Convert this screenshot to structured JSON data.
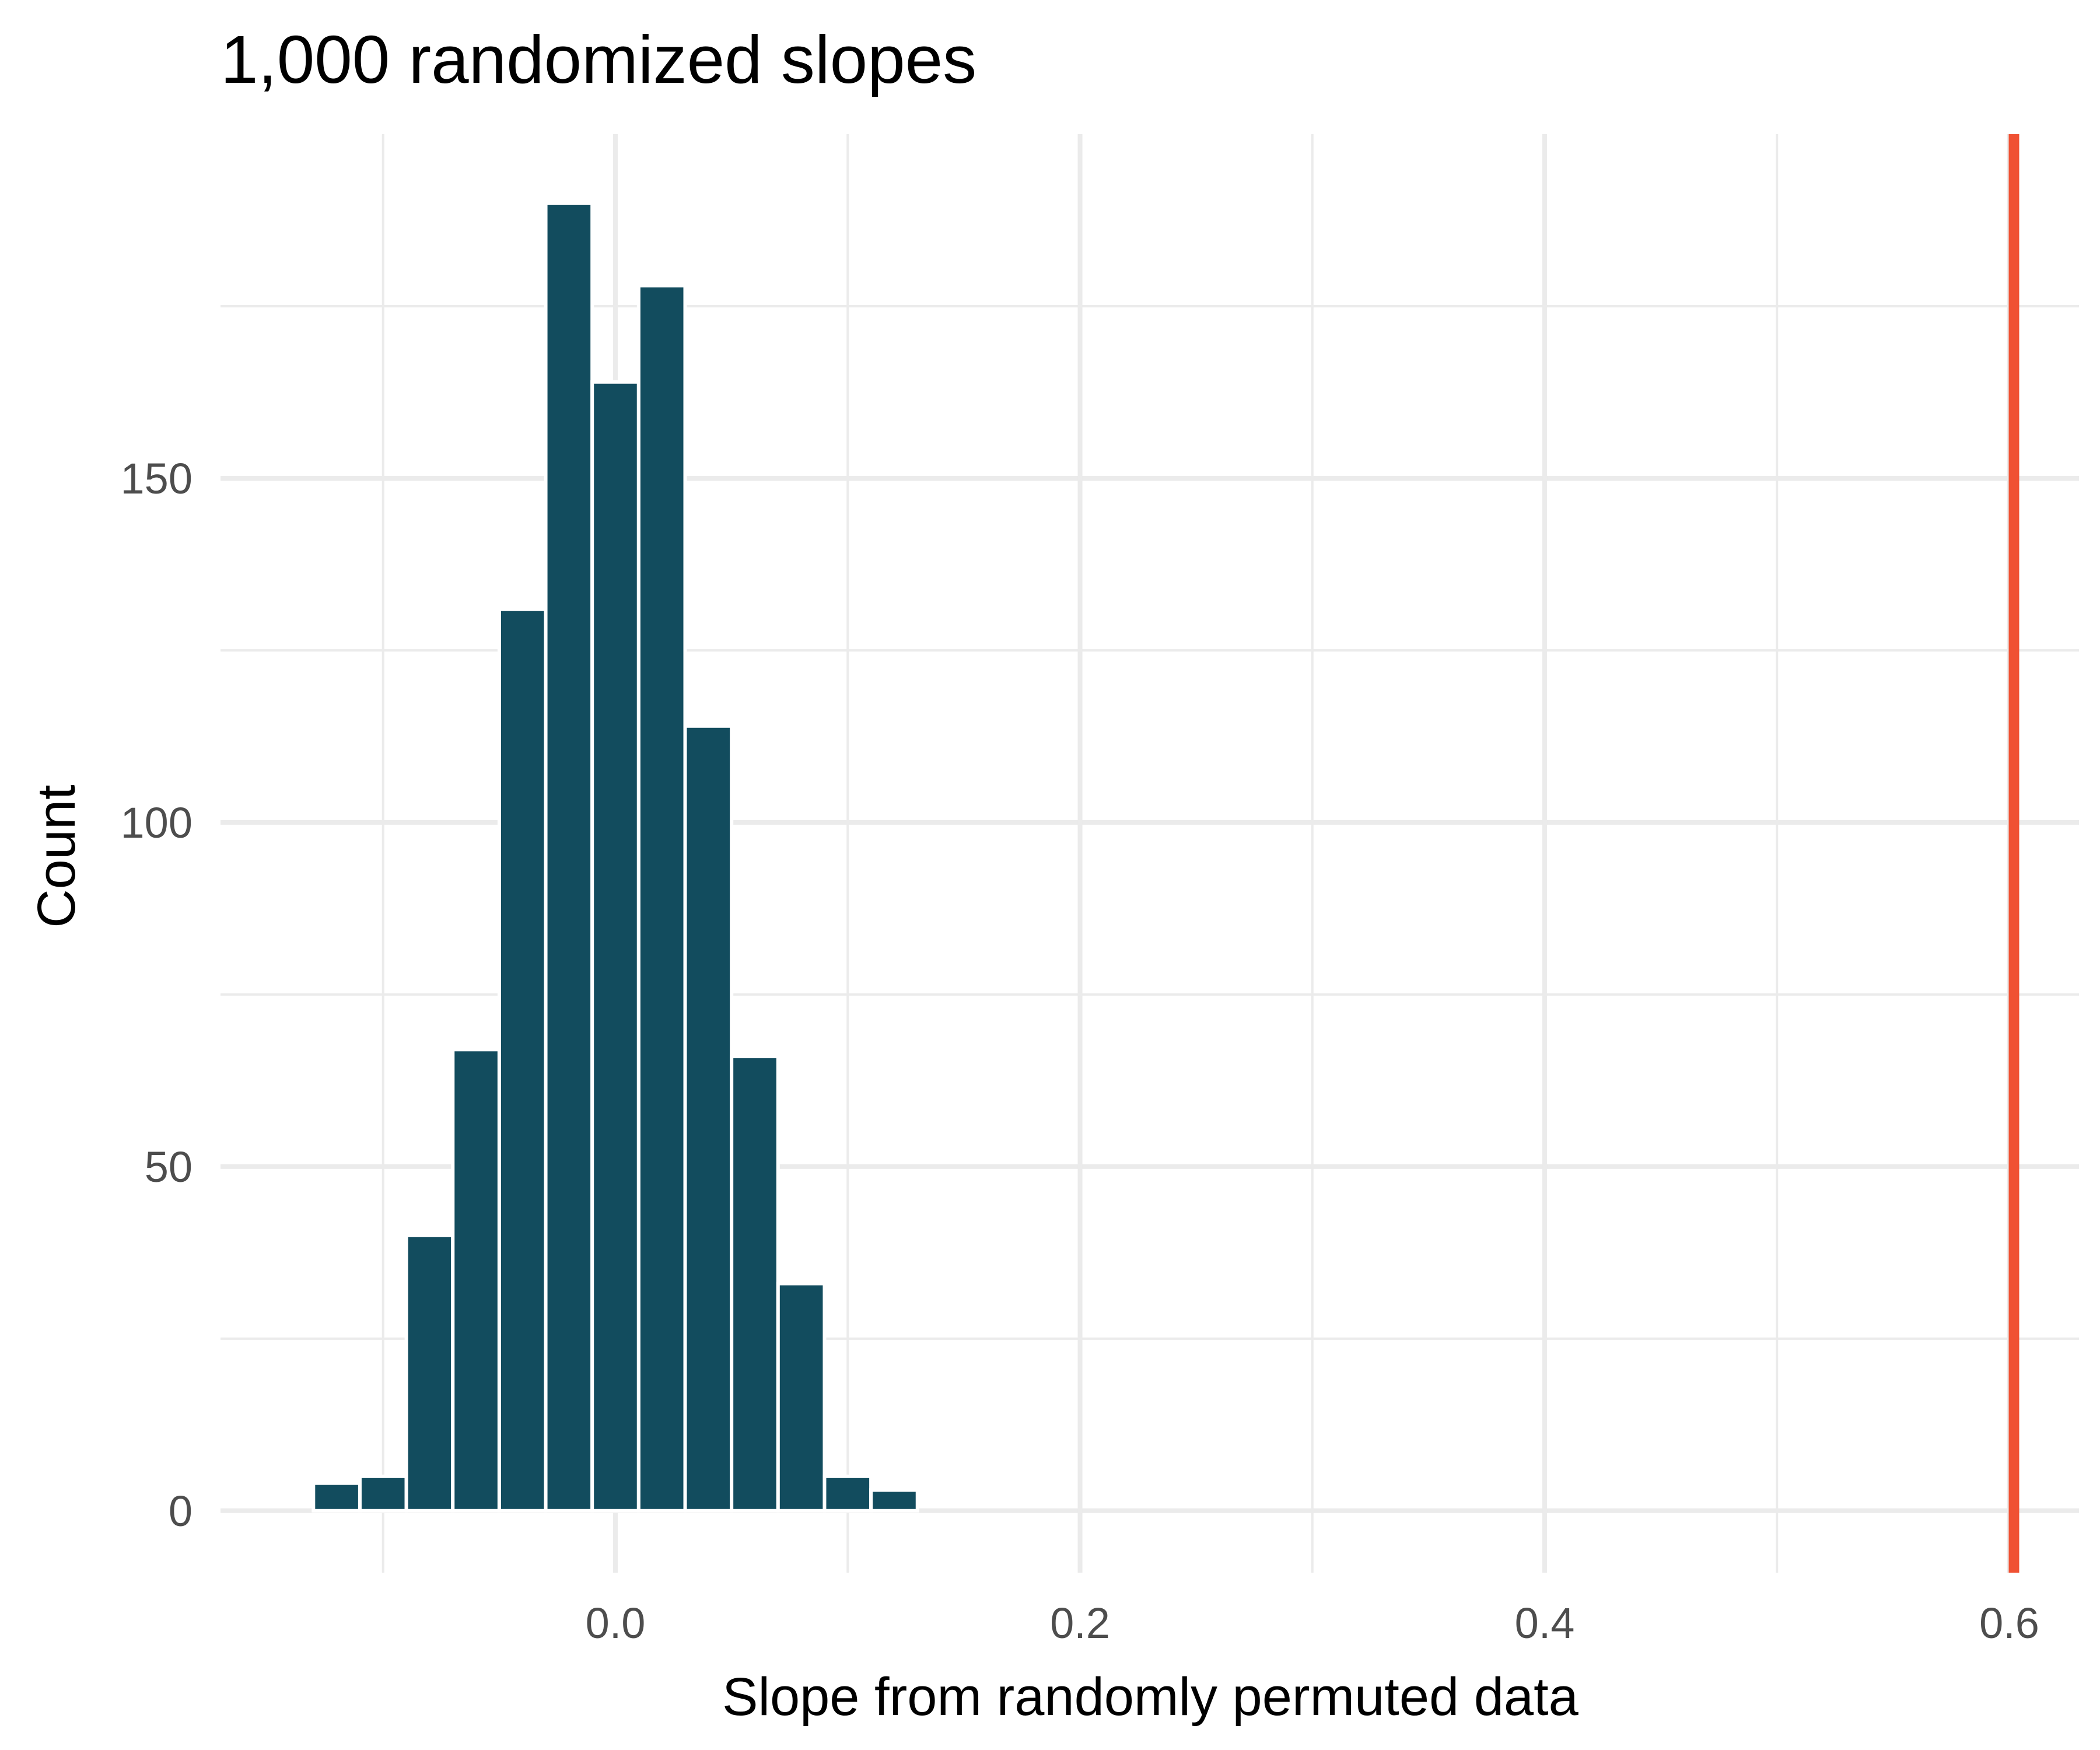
{
  "chart_data": {
    "type": "bar",
    "title": "1,000 randomized slopes",
    "xlabel": "Slope from randomly permuted data",
    "ylabel": "Count",
    "bin_width": 0.02,
    "bins": [
      {
        "x": -0.12,
        "count": 4
      },
      {
        "x": -0.1,
        "count": 5
      },
      {
        "x": -0.08,
        "count": 40
      },
      {
        "x": -0.06,
        "count": 67
      },
      {
        "x": -0.04,
        "count": 131
      },
      {
        "x": -0.02,
        "count": 190
      },
      {
        "x": 0.0,
        "count": 164
      },
      {
        "x": 0.02,
        "count": 178
      },
      {
        "x": 0.04,
        "count": 114
      },
      {
        "x": 0.06,
        "count": 66
      },
      {
        "x": 0.08,
        "count": 33
      },
      {
        "x": 0.1,
        "count": 5
      },
      {
        "x": 0.12,
        "count": 3
      }
    ],
    "observed_line": {
      "x": 0.602,
      "color": "#f05133"
    },
    "bar_color": "#124c5e",
    "xlim": [
      -0.17,
      0.63
    ],
    "ylim": [
      -9,
      200
    ],
    "x_ticks": [
      {
        "value": 0.0,
        "label": "0.0"
      },
      {
        "value": 0.2,
        "label": "0.2"
      },
      {
        "value": 0.4,
        "label": "0.4"
      },
      {
        "value": 0.6,
        "label": "0.6"
      }
    ],
    "x_minor": [
      -0.1,
      0.1,
      0.3,
      0.5
    ],
    "y_ticks": [
      {
        "value": 0,
        "label": "0"
      },
      {
        "value": 50,
        "label": "50"
      },
      {
        "value": 100,
        "label": "100"
      },
      {
        "value": 150,
        "label": "150"
      }
    ],
    "y_minor": [
      25,
      75,
      125,
      175
    ],
    "grid": true,
    "legend": "none"
  }
}
